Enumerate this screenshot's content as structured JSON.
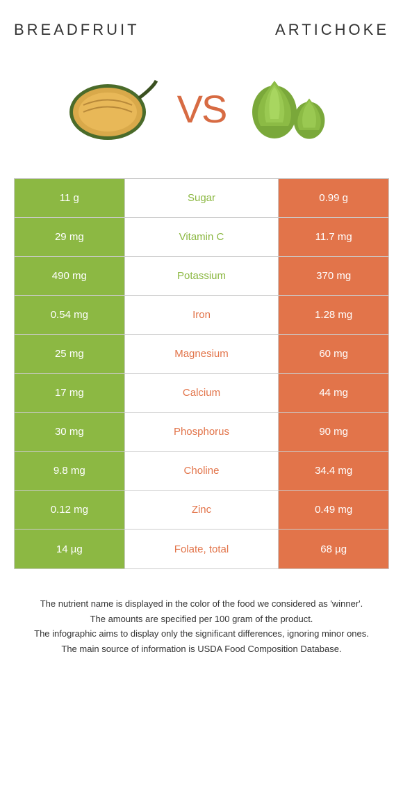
{
  "food_a": {
    "name": "BREADFRUIT",
    "color": "#8cb843"
  },
  "food_b": {
    "name": "ARTICHOKE",
    "color": "#e2744a"
  },
  "vs_label": "VS",
  "vs_color": "#d76b43",
  "background": "#ffffff",
  "border_color": "#cccccc",
  "rows": [
    {
      "a": "11 g",
      "label": "Sugar",
      "b": "0.99 g",
      "winner": "a"
    },
    {
      "a": "29 mg",
      "label": "Vitamin C",
      "b": "11.7 mg",
      "winner": "a"
    },
    {
      "a": "490 mg",
      "label": "Potassium",
      "b": "370 mg",
      "winner": "a"
    },
    {
      "a": "0.54 mg",
      "label": "Iron",
      "b": "1.28 mg",
      "winner": "b"
    },
    {
      "a": "25 mg",
      "label": "Magnesium",
      "b": "60 mg",
      "winner": "b"
    },
    {
      "a": "17 mg",
      "label": "Calcium",
      "b": "44 mg",
      "winner": "b"
    },
    {
      "a": "30 mg",
      "label": "Phosphorus",
      "b": "90 mg",
      "winner": "b"
    },
    {
      "a": "9.8 mg",
      "label": "Choline",
      "b": "34.4 mg",
      "winner": "b"
    },
    {
      "a": "0.12 mg",
      "label": "Zinc",
      "b": "0.49 mg",
      "winner": "b"
    },
    {
      "a": "14 µg",
      "label": "Folate, total",
      "b": "68 µg",
      "winner": "b"
    }
  ],
  "footer": [
    "The nutrient name is displayed in the color of the food we considered as 'winner'.",
    "The amounts are specified per 100 gram of the product.",
    "The infographic aims to display only the significant differences, ignoring minor ones.",
    "The main source of information is USDA Food Composition Database."
  ]
}
